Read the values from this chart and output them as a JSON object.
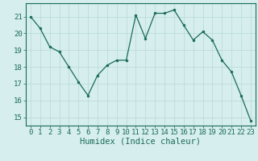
{
  "x": [
    0,
    1,
    2,
    3,
    4,
    5,
    6,
    7,
    8,
    9,
    10,
    11,
    12,
    13,
    14,
    15,
    16,
    17,
    18,
    19,
    20,
    21,
    22,
    23
  ],
  "y": [
    21.0,
    20.3,
    19.2,
    18.9,
    18.0,
    17.1,
    16.3,
    17.5,
    18.1,
    18.4,
    18.4,
    21.1,
    19.7,
    21.2,
    21.2,
    21.4,
    20.5,
    19.6,
    20.1,
    19.6,
    18.4,
    17.7,
    16.3,
    14.8
  ],
  "xlabel": "Humidex (Indice chaleur)",
  "ylim": [
    14.5,
    21.8
  ],
  "xlim": [
    -0.5,
    23.5
  ],
  "yticks": [
    15,
    16,
    17,
    18,
    19,
    20,
    21
  ],
  "xticks": [
    0,
    1,
    2,
    3,
    4,
    5,
    6,
    7,
    8,
    9,
    10,
    11,
    12,
    13,
    14,
    15,
    16,
    17,
    18,
    19,
    20,
    21,
    22,
    23
  ],
  "line_color": "#1a6b5a",
  "marker_color": "#1a6b5a",
  "bg_color": "#d6eeee",
  "grid_color": "#b8d8d8",
  "tick_color": "#1a6b5a",
  "label_color": "#1a6b5a",
  "xlabel_fontsize": 7.5,
  "tick_fontsize": 6.5
}
